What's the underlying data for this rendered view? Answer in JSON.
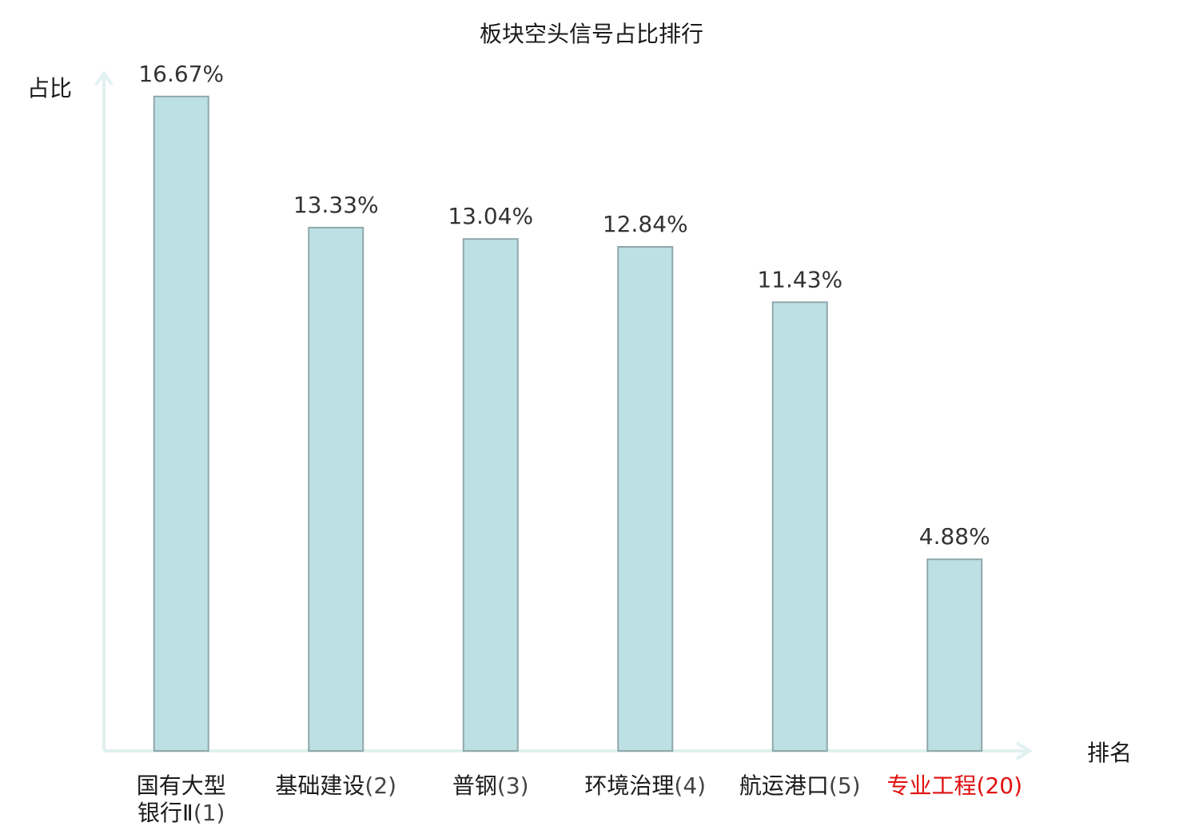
{
  "chart_data": {
    "type": "bar",
    "title": "板块空头信号占比排行",
    "ylabel": "占比",
    "xlabel": "排名",
    "ylim": [
      0,
      17.5
    ],
    "grid": false,
    "legend": "none",
    "bar_color": "#bce0e3",
    "bar_border_color": "#8fa8aa",
    "axis_color": "#e0f1ef",
    "highlight_color": "#e01010",
    "categories": [
      {
        "lines": [
          {
            "name": "国有大型"
          },
          {
            "name": "银行Ⅱ",
            "rank": "(1)"
          }
        ],
        "value": 16.67,
        "label": "16.67%",
        "highlight": false
      },
      {
        "lines": [
          {
            "name": "基础建设",
            "rank": "(2)"
          }
        ],
        "value": 13.33,
        "label": "13.33%",
        "highlight": false
      },
      {
        "lines": [
          {
            "name": "普钢",
            "rank": "(3)"
          }
        ],
        "value": 13.04,
        "label": "13.04%",
        "highlight": false
      },
      {
        "lines": [
          {
            "name": "环境治理",
            "rank": "(4)"
          }
        ],
        "value": 12.84,
        "label": "12.84%",
        "highlight": false
      },
      {
        "lines": [
          {
            "name": "航运港口",
            "rank": "(5)"
          }
        ],
        "value": 11.43,
        "label": "11.43%",
        "highlight": false
      },
      {
        "lines": [
          {
            "name": "专业工程",
            "rank": "(20)"
          }
        ],
        "value": 4.88,
        "label": "4.88%",
        "highlight": true
      }
    ]
  }
}
